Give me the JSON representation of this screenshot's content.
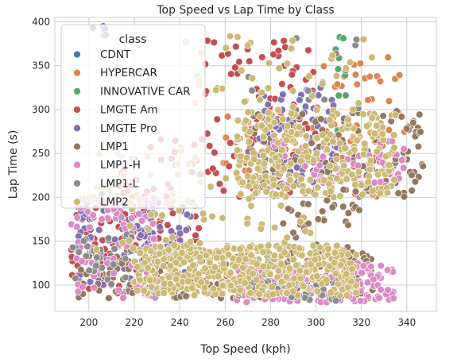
{
  "chart_data": {
    "type": "scatter",
    "title": "Top Speed vs Lap Time by Class",
    "xlabel": "Top Speed (kph)",
    "ylabel": "Lap Time (s)",
    "xlim": [
      185,
      353
    ],
    "ylim": [
      70,
      405
    ],
    "xticks": [
      "200",
      "220",
      "240",
      "260",
      "280",
      "300",
      "320",
      "340"
    ],
    "yticks": [
      "100",
      "150",
      "200",
      "250",
      "300",
      "350",
      "400"
    ],
    "grid": true,
    "legend": {
      "title": "class",
      "placement": "top-left"
    },
    "series": [
      {
        "name": "CDNT",
        "color": "#4c72b0",
        "clusters": [
          {
            "x": [
              200,
              210
            ],
            "y": [
              380,
              395
            ],
            "n": 6
          }
        ]
      },
      {
        "name": "HYPERCAR",
        "color": "#dd8452",
        "clusters": [
          {
            "x": [
              300,
              340
            ],
            "y": [
              200,
              360
            ],
            "n": 55
          },
          {
            "x": [
              255,
              300
            ],
            "y": [
              230,
              300
            ],
            "n": 25
          }
        ]
      },
      {
        "name": "INNOVATIVE CAR",
        "color": "#55a868",
        "clusters": [
          {
            "x": [
              308,
              315
            ],
            "y": [
              240,
              385
            ],
            "n": 10
          }
        ]
      },
      {
        "name": "LMGTE Am",
        "color": "#c44e52",
        "clusters": [
          {
            "x": [
              250,
              300
            ],
            "y": [
              200,
              380
            ],
            "n": 90
          },
          {
            "x": [
              192,
              240
            ],
            "y": [
              95,
              215
            ],
            "n": 110
          },
          {
            "x": [
              210,
              250
            ],
            "y": [
              150,
              270
            ],
            "n": 40
          }
        ]
      },
      {
        "name": "LMGTE Pro",
        "color": "#8172b3",
        "clusters": [
          {
            "x": [
              275,
              310
            ],
            "y": [
              210,
              330
            ],
            "n": 90
          },
          {
            "x": [
              195,
              245
            ],
            "y": [
              100,
              200
            ],
            "n": 90
          }
        ]
      },
      {
        "name": "LMP1",
        "color": "#937860",
        "clusters": [
          {
            "x": [
              270,
              348
            ],
            "y": [
              200,
              300
            ],
            "n": 160
          },
          {
            "x": [
              195,
              325
            ],
            "y": [
              85,
              140
            ],
            "n": 230
          },
          {
            "x": [
              285,
              320
            ],
            "y": [
              140,
              200
            ],
            "n": 30
          }
        ]
      },
      {
        "name": "LMP1-H",
        "color": "#da8bc3",
        "clusters": [
          {
            "x": [
              265,
              335
            ],
            "y": [
              80,
              125
            ],
            "n": 200
          },
          {
            "x": [
              192,
              230
            ],
            "y": [
              85,
              200
            ],
            "n": 90
          },
          {
            "x": [
              280,
              340
            ],
            "y": [
              210,
              270
            ],
            "n": 60
          }
        ]
      },
      {
        "name": "LMP1-L",
        "color": "#8c8c8c",
        "clusters": [
          {
            "x": [
              192,
              220
            ],
            "y": [
              100,
              160
            ],
            "n": 30
          },
          {
            "x": [
              265,
              310
            ],
            "y": [
              82,
              105
            ],
            "n": 40
          },
          {
            "x": [
              270,
              320
            ],
            "y": [
              300,
              385
            ],
            "n": 12
          }
        ]
      },
      {
        "name": "LMP2",
        "color": "#ccb974",
        "clusters": [
          {
            "x": [
              220,
              318
            ],
            "y": [
              88,
              145
            ],
            "n": 480
          },
          {
            "x": [
              265,
              335
            ],
            "y": [
              200,
              300
            ],
            "n": 260
          },
          {
            "x": [
              200,
              300
            ],
            "y": [
              140,
              260
            ],
            "n": 90
          },
          {
            "x": [
              240,
              330
            ],
            "y": [
              300,
              385
            ],
            "n": 40
          }
        ]
      }
    ]
  }
}
